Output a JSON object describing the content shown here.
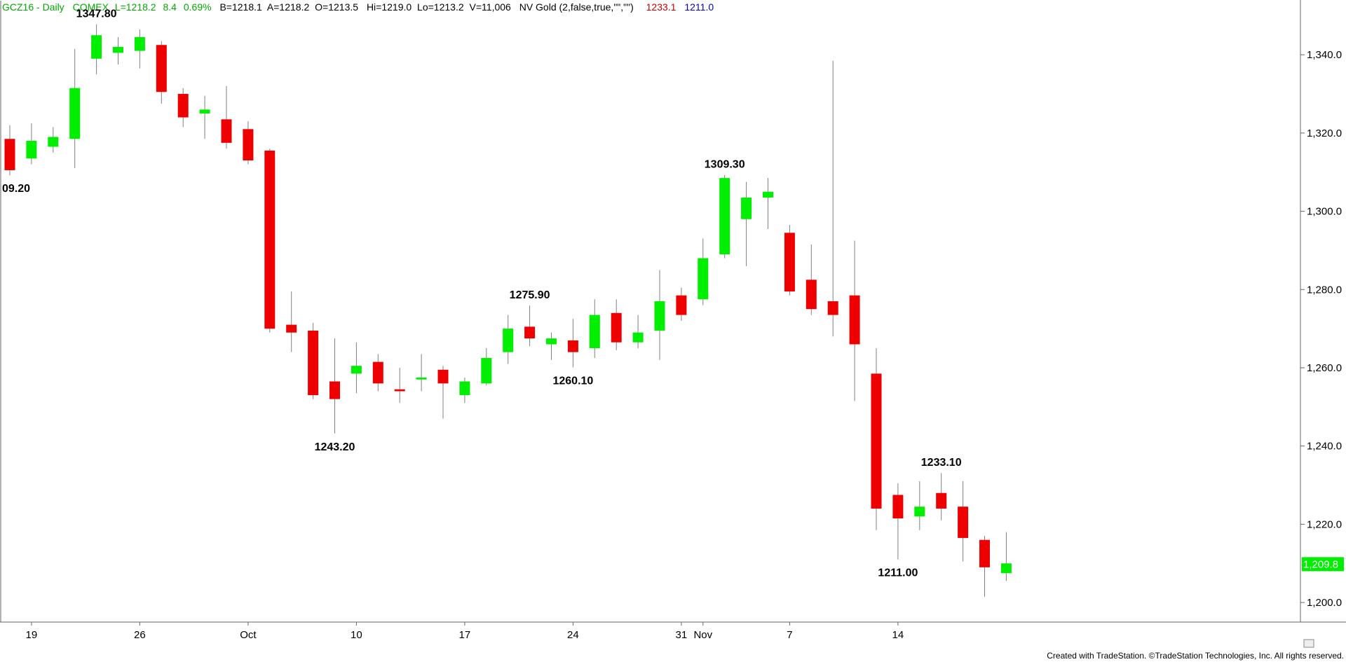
{
  "header": {
    "symbol": "GCZ16 - Daily",
    "exchange": "COMEX",
    "last": "L=1218.2",
    "change": "8.4",
    "change_pct": "0.69%",
    "bid": "B=1218.1",
    "ask": "A=1218.2",
    "open": "O=1213.5",
    "high": "Hi=1219.0",
    "low": "Lo=1213.2",
    "volume": "V=11,006",
    "indicator": "NV Gold (2,false,true,\"\",\"\")",
    "indicator_val1": "1233.1",
    "indicator_val2": "1211.0"
  },
  "colors": {
    "up": "#00ee00",
    "down": "#ee0000",
    "wick": "#808080",
    "header_green": "#00aa00",
    "val1": "#cc0000",
    "val2": "#0000cc"
  },
  "footer": "Created with TradeStation. ©TradeStation Technologies, Inc. All rights reserved.",
  "chart_data": {
    "type": "candlestick",
    "ylim": [
      1195,
      1354
    ],
    "y_ticks": [
      1200,
      1220,
      1240,
      1260,
      1280,
      1300,
      1320,
      1340
    ],
    "y_tick_labels": [
      "1,200.0",
      "1,220.0",
      "1,240.0",
      "1,260.0",
      "1,280.0",
      "1,300.0",
      "1,320.0",
      "1,340.0"
    ],
    "x_tick_labels": [
      {
        "label": "19",
        "index": 1
      },
      {
        "label": "26",
        "index": 6
      },
      {
        "label": "Oct",
        "index": 11
      },
      {
        "label": "10",
        "index": 16
      },
      {
        "label": "17",
        "index": 21
      },
      {
        "label": "24",
        "index": 26
      },
      {
        "label": "31",
        "index": 31
      },
      {
        "label": "Nov",
        "index": 32
      },
      {
        "label": "7",
        "index": 36
      },
      {
        "label": "14",
        "index": 41
      }
    ],
    "last_price_label": "1,209.8",
    "last_price": 1209.8,
    "candles": [
      {
        "o": 1318.5,
        "h": 1322.0,
        "l": 1309.2,
        "c": 1310.5
      },
      {
        "o": 1313.5,
        "h": 1322.5,
        "l": 1312.0,
        "c": 1318.0
      },
      {
        "o": 1316.5,
        "h": 1321.5,
        "l": 1315.0,
        "c": 1319.0
      },
      {
        "o": 1318.5,
        "h": 1341.5,
        "l": 1311.0,
        "c": 1331.5
      },
      {
        "o": 1339.0,
        "h": 1347.8,
        "l": 1335.0,
        "c": 1345.0
      },
      {
        "o": 1340.5,
        "h": 1344.5,
        "l": 1337.5,
        "c": 1342.0
      },
      {
        "o": 1341.0,
        "h": 1346.5,
        "l": 1336.5,
        "c": 1344.5
      },
      {
        "o": 1342.5,
        "h": 1343.5,
        "l": 1327.5,
        "c": 1330.5
      },
      {
        "o": 1330.0,
        "h": 1331.5,
        "l": 1321.5,
        "c": 1324.0
      },
      {
        "o": 1325.0,
        "h": 1329.5,
        "l": 1318.5,
        "c": 1326.0
      },
      {
        "o": 1323.5,
        "h": 1332.0,
        "l": 1316.0,
        "c": 1317.5
      },
      {
        "o": 1321.0,
        "h": 1323.0,
        "l": 1312.0,
        "c": 1313.0
      },
      {
        "o": 1315.5,
        "h": 1316.0,
        "l": 1269.0,
        "c": 1270.0
      },
      {
        "o": 1271.0,
        "h": 1279.5,
        "l": 1264.0,
        "c": 1269.0
      },
      {
        "o": 1269.5,
        "h": 1271.5,
        "l": 1252.0,
        "c": 1253.0
      },
      {
        "o": 1256.5,
        "h": 1267.5,
        "l": 1243.2,
        "c": 1252.0
      },
      {
        "o": 1258.5,
        "h": 1266.5,
        "l": 1253.5,
        "c": 1260.5
      },
      {
        "o": 1261.5,
        "h": 1263.5,
        "l": 1254.0,
        "c": 1256.0
      },
      {
        "o": 1254.5,
        "h": 1260.0,
        "l": 1251.0,
        "c": 1254.0
      },
      {
        "o": 1257.0,
        "h": 1263.5,
        "l": 1254.0,
        "c": 1257.5
      },
      {
        "o": 1259.5,
        "h": 1260.5,
        "l": 1247.0,
        "c": 1256.0
      },
      {
        "o": 1253.0,
        "h": 1257.5,
        "l": 1251.0,
        "c": 1256.5
      },
      {
        "o": 1256.0,
        "h": 1265.0,
        "l": 1255.5,
        "c": 1262.5
      },
      {
        "o": 1264.0,
        "h": 1273.5,
        "l": 1261.0,
        "c": 1270.0
      },
      {
        "o": 1270.5,
        "h": 1275.9,
        "l": 1265.5,
        "c": 1267.5
      },
      {
        "o": 1266.0,
        "h": 1269.0,
        "l": 1262.0,
        "c": 1267.5
      },
      {
        "o": 1267.0,
        "h": 1272.5,
        "l": 1260.1,
        "c": 1264.0
      },
      {
        "o": 1265.0,
        "h": 1277.5,
        "l": 1262.5,
        "c": 1273.5
      },
      {
        "o": 1274.0,
        "h": 1277.5,
        "l": 1264.5,
        "c": 1266.5
      },
      {
        "o": 1266.5,
        "h": 1273.5,
        "l": 1265.0,
        "c": 1269.0
      },
      {
        "o": 1269.5,
        "h": 1285.0,
        "l": 1262.0,
        "c": 1277.0
      },
      {
        "o": 1278.5,
        "h": 1280.5,
        "l": 1272.0,
        "c": 1273.5
      },
      {
        "o": 1277.5,
        "h": 1293.0,
        "l": 1276.0,
        "c": 1288.0
      },
      {
        "o": 1289.0,
        "h": 1309.3,
        "l": 1288.0,
        "c": 1308.5
      },
      {
        "o": 1298.0,
        "h": 1307.5,
        "l": 1286.0,
        "c": 1303.5
      },
      {
        "o": 1303.5,
        "h": 1308.5,
        "l": 1295.5,
        "c": 1305.0
      },
      {
        "o": 1294.5,
        "h": 1296.5,
        "l": 1278.5,
        "c": 1279.5
      },
      {
        "o": 1282.5,
        "h": 1291.5,
        "l": 1273.5,
        "c": 1275.0
      },
      {
        "o": 1277.0,
        "h": 1338.5,
        "l": 1268.0,
        "c": 1273.5
      },
      {
        "o": 1278.5,
        "h": 1292.5,
        "l": 1251.5,
        "c": 1266.0
      },
      {
        "o": 1258.5,
        "h": 1265.0,
        "l": 1218.5,
        "c": 1224.0
      },
      {
        "o": 1227.5,
        "h": 1230.5,
        "l": 1211.0,
        "c": 1221.5
      },
      {
        "o": 1222.0,
        "h": 1231.0,
        "l": 1218.5,
        "c": 1224.5
      },
      {
        "o": 1228.0,
        "h": 1233.1,
        "l": 1221.0,
        "c": 1224.0
      },
      {
        "o": 1224.5,
        "h": 1231.0,
        "l": 1210.5,
        "c": 1216.5
      },
      {
        "o": 1216.0,
        "h": 1217.0,
        "l": 1201.5,
        "c": 1209.0
      },
      {
        "o": 1207.5,
        "h": 1218.0,
        "l": 1205.5,
        "c": 1210.0
      }
    ],
    "annotations": [
      {
        "label": "09.20",
        "index": 0,
        "price": 1309.2,
        "pos": "below"
      },
      {
        "label": "1347.80",
        "index": 4,
        "price": 1347.8,
        "pos": "above"
      },
      {
        "label": "1243.20",
        "index": 15,
        "price": 1243.2,
        "pos": "below"
      },
      {
        "label": "1275.90",
        "index": 24,
        "price": 1275.9,
        "pos": "above"
      },
      {
        "label": "1260.10",
        "index": 26,
        "price": 1260.1,
        "pos": "below"
      },
      {
        "label": "1309.30",
        "index": 33,
        "price": 1309.3,
        "pos": "above"
      },
      {
        "label": "1211.00",
        "index": 41,
        "price": 1211.0,
        "pos": "below"
      },
      {
        "label": "1233.10",
        "index": 43,
        "price": 1233.1,
        "pos": "above"
      }
    ]
  }
}
